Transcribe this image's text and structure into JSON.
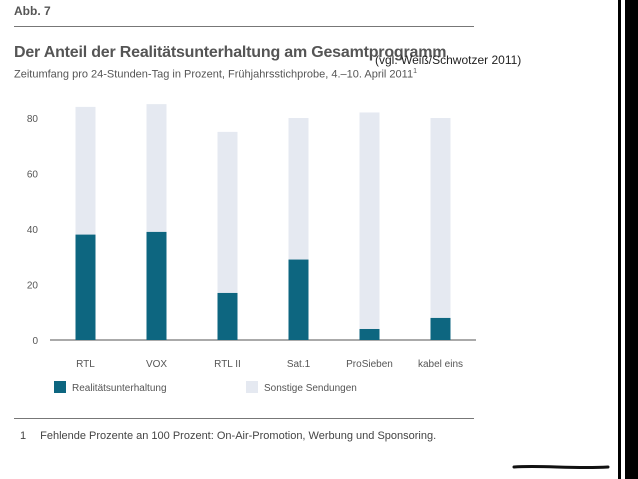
{
  "header": {
    "figure_label": "Abb. 7",
    "title": "Der Anteil der Realitätsunterhaltung am Gesamtprogramm",
    "subtitle": "Zeitumfang pro 24-Stunden-Tag in Prozent, Frühjahrsstichprobe, 4.–10. April 2011",
    "subtitle_note": "1",
    "citation": "(vgl. Weiß/Schwotzer 2011)"
  },
  "footnote": {
    "number": "1",
    "text": "Fehlende Prozente an 100 Prozent: On-Air-Promotion, Werbung und Sponsoring."
  },
  "colors": {
    "reality": "#0d6680",
    "other": "#e5e9f1",
    "axis": "#555555"
  },
  "chart_data": {
    "type": "bar",
    "stacked": true,
    "categories": [
      "RTL",
      "VOX",
      "RTL II",
      "Sat.1",
      "ProSieben",
      "kabel eins"
    ],
    "series": [
      {
        "name": "Realitätsunterhaltung",
        "values": [
          38,
          39,
          17,
          29,
          4,
          8
        ]
      },
      {
        "name": "Sonstige Sendungen",
        "values": [
          46,
          46,
          58,
          51,
          78,
          72
        ]
      }
    ],
    "ylim": [
      0,
      80
    ],
    "yticks": [
      0,
      20,
      40,
      60,
      80
    ],
    "legend_position": "bottom-left"
  }
}
